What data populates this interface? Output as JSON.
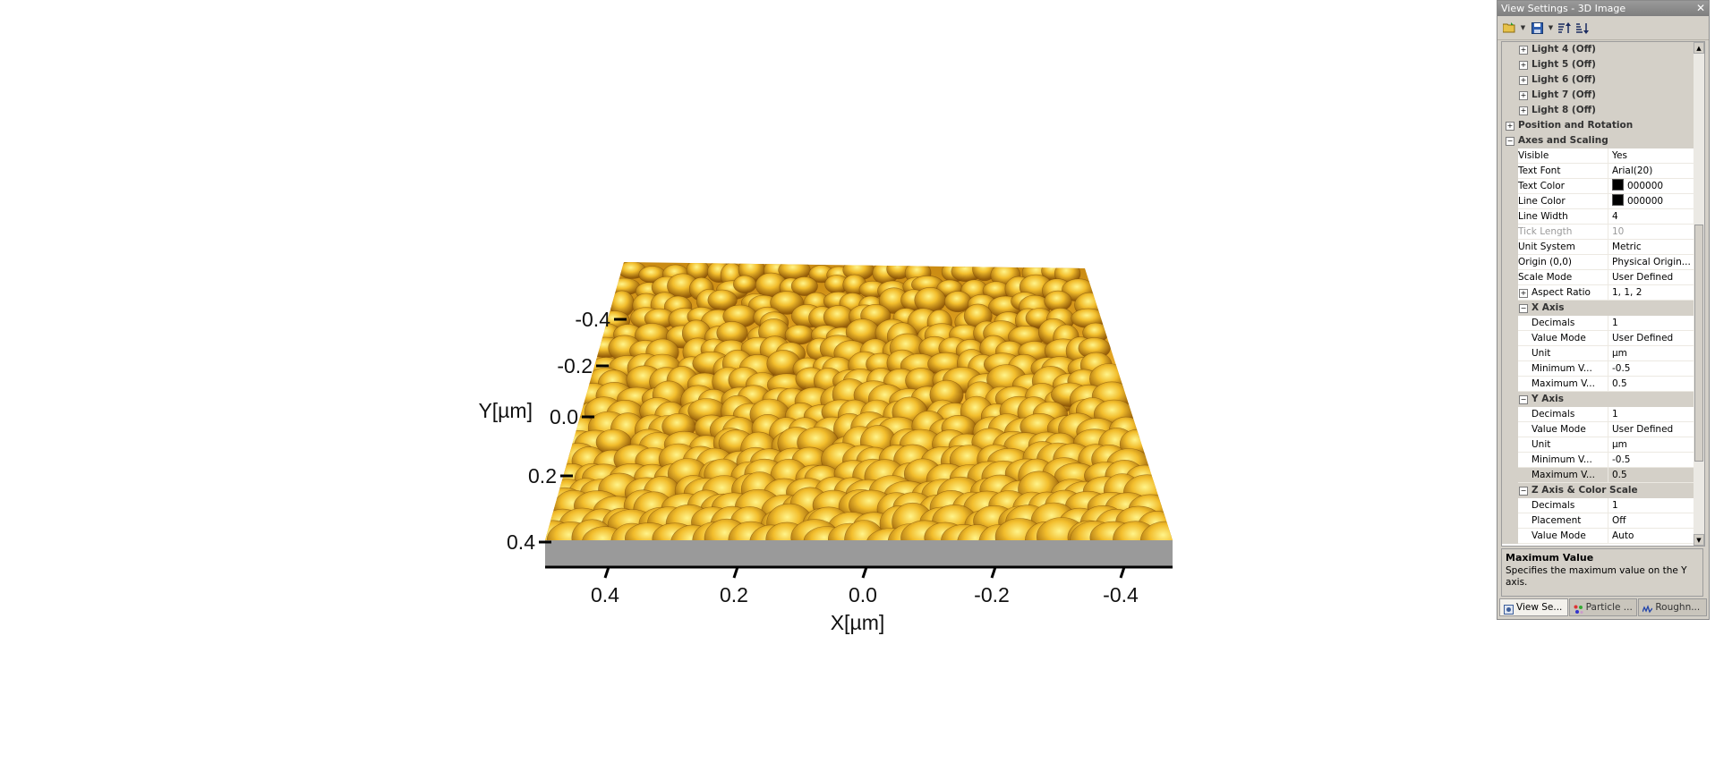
{
  "viewport": {
    "x_axis": {
      "label": "X[µm]",
      "ticks": [
        "0.4",
        "0.2",
        "0.0",
        "-0.2",
        "-0.4"
      ]
    },
    "y_axis": {
      "label": "Y[µm]",
      "ticks": [
        "-0.4",
        "-0.2",
        "0.0",
        "0.2",
        "0.4"
      ]
    },
    "surface_colors": {
      "peak": "#ffe24a",
      "mid": "#e39a10",
      "valley": "#6a3c05",
      "base": "#9a9a9a"
    }
  },
  "panel": {
    "title": "View Settings - 3D Image",
    "close_label": "✕",
    "toolbar": [
      {
        "name": "open-folder-icon",
        "has_dropdown": true
      },
      {
        "name": "save-icon",
        "has_dropdown": true
      },
      {
        "name": "sort-ascending-icon",
        "has_dropdown": false
      },
      {
        "name": "sort-descending-icon",
        "has_dropdown": false
      }
    ],
    "rows": [
      {
        "kind": "grp",
        "level": 1,
        "expander": "+",
        "label": "Light 4 (Off)"
      },
      {
        "kind": "grp",
        "level": 1,
        "expander": "+",
        "label": "Light 5 (Off)"
      },
      {
        "kind": "grp",
        "level": 1,
        "expander": "+",
        "label": "Light 6 (Off)"
      },
      {
        "kind": "grp",
        "level": 1,
        "expander": "+",
        "label": "Light 7 (Off)"
      },
      {
        "kind": "grp",
        "level": 1,
        "expander": "+",
        "label": "Light 8 (Off)"
      },
      {
        "kind": "cat",
        "level": 0,
        "expander": "+",
        "label": "Position and Rotation"
      },
      {
        "kind": "cat",
        "level": 0,
        "expander": "−",
        "label": "Axes and Scaling"
      },
      {
        "kind": "prop",
        "level": 0,
        "label": "Visible",
        "value": "Yes"
      },
      {
        "kind": "prop",
        "level": 0,
        "label": "Text Font",
        "value": "Arial(20)"
      },
      {
        "kind": "prop",
        "level": 0,
        "label": "Text Color",
        "value": "000000",
        "swatch": "#000000"
      },
      {
        "kind": "prop",
        "level": 0,
        "label": "Line Color",
        "value": "000000",
        "swatch": "#000000"
      },
      {
        "kind": "prop",
        "level": 0,
        "label": "Line Width",
        "value": "4"
      },
      {
        "kind": "prop",
        "level": 0,
        "label": "Tick Length",
        "value": "10",
        "disabled": true
      },
      {
        "kind": "prop",
        "level": 0,
        "label": "Unit System",
        "value": "Metric"
      },
      {
        "kind": "prop",
        "level": 0,
        "label": "Origin (0,0)",
        "value": "Physical Origin..."
      },
      {
        "kind": "prop",
        "level": 0,
        "label": "Scale Mode",
        "value": "User Defined"
      },
      {
        "kind": "prop",
        "level": 1,
        "expander": "+",
        "label": "Aspect Ratio",
        "value": "1, 1, 2"
      },
      {
        "kind": "grp",
        "level": 1,
        "expander": "−",
        "label": "X Axis"
      },
      {
        "kind": "prop",
        "level": 1,
        "label": "Decimals",
        "value": "1"
      },
      {
        "kind": "prop",
        "level": 1,
        "label": "Value Mode",
        "value": "User Defined"
      },
      {
        "kind": "prop",
        "level": 1,
        "label": "Unit",
        "value": "µm"
      },
      {
        "kind": "prop",
        "level": 1,
        "label": "Minimum V...",
        "value": "-0.5"
      },
      {
        "kind": "prop",
        "level": 1,
        "label": "Maximum V...",
        "value": "0.5"
      },
      {
        "kind": "grp",
        "level": 1,
        "expander": "−",
        "label": "Y Axis"
      },
      {
        "kind": "prop",
        "level": 1,
        "label": "Decimals",
        "value": "1"
      },
      {
        "kind": "prop",
        "level": 1,
        "label": "Value Mode",
        "value": "User Defined"
      },
      {
        "kind": "prop",
        "level": 1,
        "label": "Unit",
        "value": "µm"
      },
      {
        "kind": "prop",
        "level": 1,
        "label": "Minimum V...",
        "value": "-0.5"
      },
      {
        "kind": "prop",
        "level": 1,
        "label": "Maximum V...",
        "value": "0.5",
        "selected": true
      },
      {
        "kind": "grp",
        "level": 1,
        "expander": "−",
        "label": "Z Axis & Color Scale"
      },
      {
        "kind": "prop",
        "level": 1,
        "label": "Decimals",
        "value": "1"
      },
      {
        "kind": "prop",
        "level": 1,
        "label": "Placement",
        "value": "Off"
      },
      {
        "kind": "prop",
        "level": 1,
        "label": "Value Mode",
        "value": "Auto"
      }
    ],
    "description": {
      "title": "Maximum Value",
      "text": "Specifies the maximum value on the Y axis."
    },
    "tabs": [
      {
        "label": "View Se...",
        "icon": "view-settings-icon",
        "active": true
      },
      {
        "label": "Particle ...",
        "icon": "particle-icon",
        "active": false
      },
      {
        "label": "Roughn...",
        "icon": "roughness-icon",
        "active": false
      }
    ]
  }
}
